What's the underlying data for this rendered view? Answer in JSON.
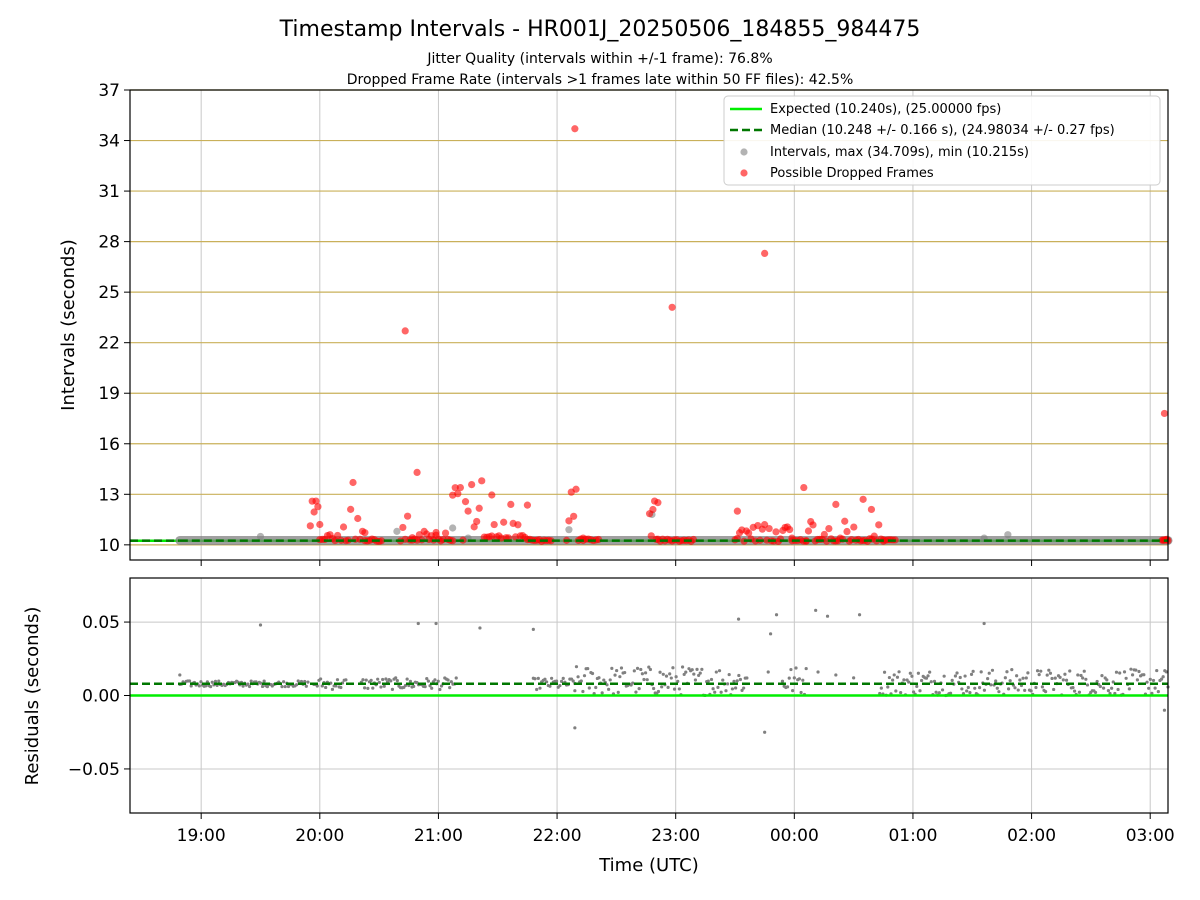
{
  "title": "Timestamp Intervals - HR001J_20250506_184855_984475",
  "subtitle_lines": [
    "Jitter Quality (intervals within +/-1 frame): 76.8%",
    "Dropped Frame Rate (intervals >1 frames late within 50 FF files): 42.5%"
  ],
  "colors": {
    "expected": "#00ee00",
    "median": "#007700",
    "intervals": "#808080",
    "dropped": "#ff0000",
    "hgrid_top": "#c9b05a",
    "grid": "#c8c8c8"
  },
  "chart_data": [
    {
      "type": "scatter",
      "ylabel": "Intervals (seconds)",
      "xlabel": "",
      "ylim": [
        9.1,
        37
      ],
      "yticks": [
        10,
        13,
        16,
        19,
        22,
        25,
        28,
        31,
        34,
        37
      ],
      "xlim": [
        18.4,
        27.15
      ],
      "xticks": [
        19,
        20,
        21,
        22,
        23,
        24,
        25,
        26,
        27
      ],
      "xtick_labels": [
        "19:00",
        "20:00",
        "21:00",
        "22:00",
        "23:00",
        "00:00",
        "01:00",
        "02:00",
        "03:00"
      ],
      "grid": "on",
      "legend_position": "top-right",
      "legend": [
        "Expected (10.240s), (25.00000 fps)",
        "Median (10.248 +/- 0.166 s), (24.98034 +/- 0.27 fps)",
        "Intervals, max (34.709s), min (10.215s)",
        "Possible Dropped Frames"
      ],
      "expected_value": 10.24,
      "median_value": 10.248,
      "intervals_band": {
        "x_start": 18.82,
        "x_end": 27.15,
        "y": 10.26
      },
      "interval_outliers": [
        {
          "x": 19.5,
          "y": 10.5
        },
        {
          "x": 20.65,
          "y": 10.8
        },
        {
          "x": 21.12,
          "y": 11.0
        },
        {
          "x": 21.25,
          "y": 10.4
        },
        {
          "x": 22.1,
          "y": 10.9
        },
        {
          "x": 22.8,
          "y": 11.8
        },
        {
          "x": 25.6,
          "y": 10.4
        },
        {
          "x": 25.8,
          "y": 10.6
        }
      ],
      "dropped_frame_outliers": [
        {
          "x": 20.72,
          "y": 22.7
        },
        {
          "x": 20.82,
          "y": 14.3
        },
        {
          "x": 22.15,
          "y": 34.7
        },
        {
          "x": 22.97,
          "y": 24.1
        },
        {
          "x": 23.75,
          "y": 27.3
        },
        {
          "x": 24.08,
          "y": 13.4
        },
        {
          "x": 24.35,
          "y": 12.4
        },
        {
          "x": 24.58,
          "y": 12.7
        },
        {
          "x": 24.65,
          "y": 12.1
        },
        {
          "x": 23.52,
          "y": 12.0
        },
        {
          "x": 27.12,
          "y": 17.8
        }
      ],
      "dropped_frame_clusters": [
        {
          "x_start": 19.92,
          "x_end": 20.0,
          "y_min": 10.2,
          "y_max": 12.6
        },
        {
          "x_start": 20.0,
          "x_end": 20.15,
          "y_min": 10.2,
          "y_max": 10.6
        },
        {
          "x_start": 20.18,
          "x_end": 20.38,
          "y_min": 10.2,
          "y_max": 13.7
        },
        {
          "x_start": 20.38,
          "x_end": 20.52,
          "y_min": 10.2,
          "y_max": 10.3
        },
        {
          "x_start": 20.68,
          "x_end": 20.78,
          "y_min": 10.2,
          "y_max": 11.7
        },
        {
          "x_start": 20.78,
          "x_end": 20.98,
          "y_min": 10.2,
          "y_max": 10.8
        },
        {
          "x_start": 20.98,
          "x_end": 21.12,
          "y_min": 10.2,
          "y_max": 10.7
        },
        {
          "x_start": 21.12,
          "x_end": 21.25,
          "y_min": 10.2,
          "y_max": 13.4
        },
        {
          "x_start": 21.28,
          "x_end": 21.45,
          "y_min": 10.4,
          "y_max": 13.8
        },
        {
          "x_start": 21.45,
          "x_end": 21.75,
          "y_min": 10.4,
          "y_max": 12.4
        },
        {
          "x_start": 21.75,
          "x_end": 21.95,
          "y_min": 10.2,
          "y_max": 10.3
        },
        {
          "x_start": 22.08,
          "x_end": 22.22,
          "y_min": 10.2,
          "y_max": 13.3
        },
        {
          "x_start": 22.22,
          "x_end": 22.35,
          "y_min": 10.2,
          "y_max": 10.3
        },
        {
          "x_start": 22.78,
          "x_end": 22.85,
          "y_min": 10.2,
          "y_max": 12.6
        },
        {
          "x_start": 22.85,
          "x_end": 23.15,
          "y_min": 10.2,
          "y_max": 10.3
        },
        {
          "x_start": 23.5,
          "x_end": 23.98,
          "y_min": 10.2,
          "y_max": 11.2
        },
        {
          "x_start": 23.98,
          "x_end": 24.1,
          "y_min": 10.2,
          "y_max": 10.3
        },
        {
          "x_start": 24.1,
          "x_end": 24.75,
          "y_min": 10.2,
          "y_max": 11.4
        },
        {
          "x_start": 24.75,
          "x_end": 24.85,
          "y_min": 10.2,
          "y_max": 10.3
        },
        {
          "x_start": 27.1,
          "x_end": 27.15,
          "y_min": 10.2,
          "y_max": 10.3
        }
      ]
    },
    {
      "type": "scatter",
      "ylabel": "Residuals (seconds)",
      "xlabel": "Time (UTC)",
      "ylim": [
        -0.08,
        0.08
      ],
      "yticks": [
        -0.05,
        0.0,
        0.05
      ],
      "ytick_labels": [
        "−0.05",
        "0.00",
        "0.05"
      ],
      "xlim": [
        18.4,
        27.15
      ],
      "xticks": [
        19,
        20,
        21,
        22,
        23,
        24,
        25,
        26,
        27
      ],
      "xtick_labels": [
        "19:00",
        "20:00",
        "21:00",
        "22:00",
        "23:00",
        "00:00",
        "01:00",
        "02:00",
        "03:00"
      ],
      "grid": "on",
      "expected_value": 0.0,
      "median_value": 0.008,
      "residual_bands": [
        {
          "x_start": 18.82,
          "x_end": 19.9,
          "y_min": 0.006,
          "y_max": 0.01
        },
        {
          "x_start": 19.95,
          "x_end": 20.22,
          "y_min": 0.004,
          "y_max": 0.012
        },
        {
          "x_start": 20.35,
          "x_end": 21.15,
          "y_min": 0.004,
          "y_max": 0.012
        },
        {
          "x_start": 21.8,
          "x_end": 22.15,
          "y_min": 0.004,
          "y_max": 0.012
        },
        {
          "x_start": 22.15,
          "x_end": 23.6,
          "y_min": 0.0,
          "y_max": 0.02
        },
        {
          "x_start": 23.9,
          "x_end": 24.1,
          "y_min": 0.0,
          "y_max": 0.02
        },
        {
          "x_start": 24.72,
          "x_end": 27.15,
          "y_min": 0.0,
          "y_max": 0.018
        }
      ],
      "residual_outliers": [
        {
          "x": 18.82,
          "y": 0.014
        },
        {
          "x": 19.5,
          "y": 0.048
        },
        {
          "x": 20.83,
          "y": 0.049
        },
        {
          "x": 20.98,
          "y": 0.049
        },
        {
          "x": 21.35,
          "y": 0.046
        },
        {
          "x": 21.8,
          "y": 0.045
        },
        {
          "x": 22.15,
          "y": -0.022
        },
        {
          "x": 23.53,
          "y": 0.052
        },
        {
          "x": 23.75,
          "y": -0.025
        },
        {
          "x": 23.8,
          "y": 0.042
        },
        {
          "x": 23.85,
          "y": 0.055
        },
        {
          "x": 24.18,
          "y": 0.058
        },
        {
          "x": 24.28,
          "y": 0.054
        },
        {
          "x": 24.55,
          "y": 0.055
        },
        {
          "x": 25.6,
          "y": 0.049
        },
        {
          "x": 27.12,
          "y": -0.01
        },
        {
          "x": 23.78,
          "y": 0.016
        },
        {
          "x": 24.2,
          "y": 0.016
        },
        {
          "x": 24.35,
          "y": 0.014
        },
        {
          "x": 24.5,
          "y": 0.012
        }
      ]
    }
  ]
}
